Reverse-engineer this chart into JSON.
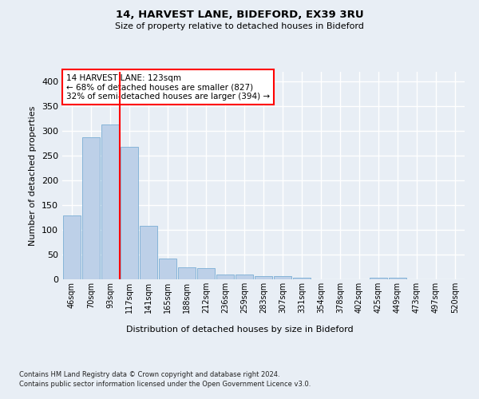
{
  "title1": "14, HARVEST LANE, BIDEFORD, EX39 3RU",
  "title2": "Size of property relative to detached houses in Bideford",
  "xlabel": "Distribution of detached houses by size in Bideford",
  "ylabel": "Number of detached properties",
  "categories": [
    "46sqm",
    "70sqm",
    "93sqm",
    "117sqm",
    "141sqm",
    "165sqm",
    "188sqm",
    "212sqm",
    "236sqm",
    "259sqm",
    "283sqm",
    "307sqm",
    "331sqm",
    "354sqm",
    "378sqm",
    "402sqm",
    "425sqm",
    "449sqm",
    "473sqm",
    "497sqm",
    "520sqm"
  ],
  "values": [
    130,
    288,
    313,
    268,
    108,
    42,
    25,
    22,
    10,
    9,
    7,
    7,
    3,
    0,
    0,
    0,
    4,
    4,
    0,
    0,
    0
  ],
  "bar_color": "#bdd0e8",
  "bar_edge_color": "#7aadd4",
  "annotation_title": "14 HARVEST LANE: 123sqm",
  "annotation_line1": "← 68% of detached houses are smaller (827)",
  "annotation_line2": "32% of semi-detached houses are larger (394) →",
  "footnote1": "Contains HM Land Registry data © Crown copyright and database right 2024.",
  "footnote2": "Contains public sector information licensed under the Open Government Licence v3.0.",
  "ylim": [
    0,
    420
  ],
  "yticks": [
    0,
    50,
    100,
    150,
    200,
    250,
    300,
    350,
    400
  ],
  "bg_color": "#e8eef5",
  "plot_bg_color": "#e8eef5",
  "grid_color": "#ffffff",
  "red_line_x": 2.5
}
